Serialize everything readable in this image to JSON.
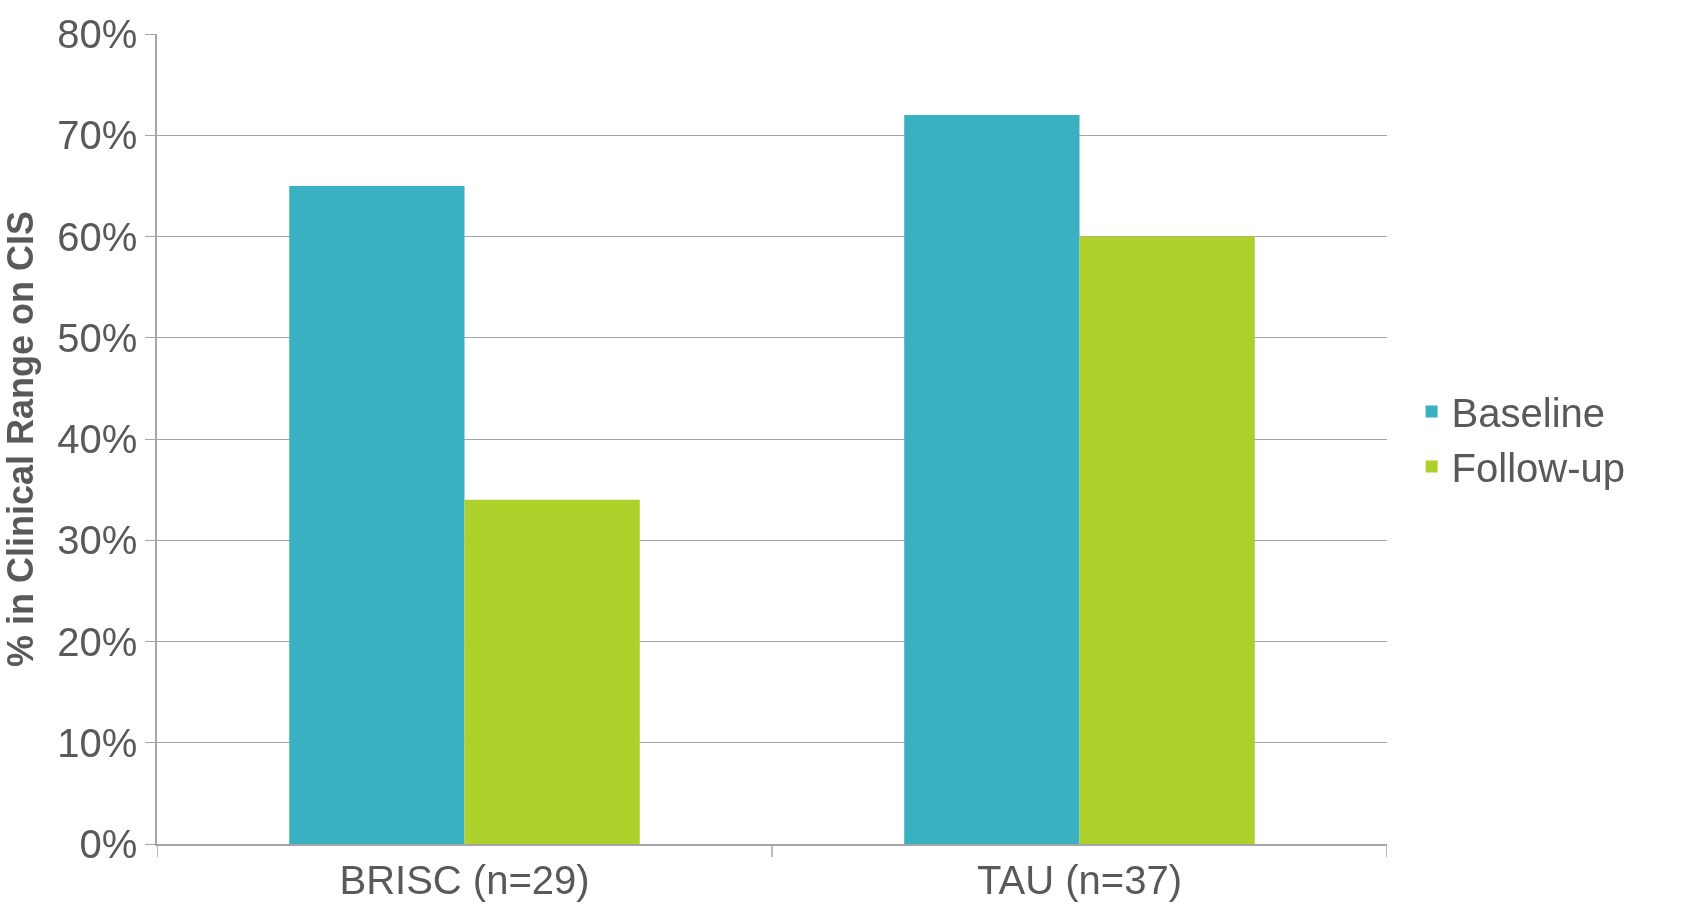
{
  "chart_data": {
    "type": "bar",
    "ylabel": "% in Clinical Range on CIS",
    "categories": [
      "BRISC (n=29)",
      "TAU (n=37)"
    ],
    "series": [
      {
        "name": "Baseline",
        "color": "#3ab0c3",
        "values": [
          65,
          72
        ]
      },
      {
        "name": "Follow-up",
        "color": "#add02b",
        "values": [
          34,
          60
        ]
      }
    ],
    "ylim": [
      0,
      80
    ],
    "yticks": [
      {
        "value": 0,
        "label": "0%"
      },
      {
        "value": 10,
        "label": "10%"
      },
      {
        "value": 20,
        "label": "20%"
      },
      {
        "value": 30,
        "label": "30%"
      },
      {
        "value": 40,
        "label": "40%"
      },
      {
        "value": 50,
        "label": "50%"
      },
      {
        "value": 60,
        "label": "60%"
      },
      {
        "value": 70,
        "label": "70%"
      },
      {
        "value": 80,
        "label": "80%"
      }
    ],
    "grid": "y",
    "legend": "right"
  }
}
